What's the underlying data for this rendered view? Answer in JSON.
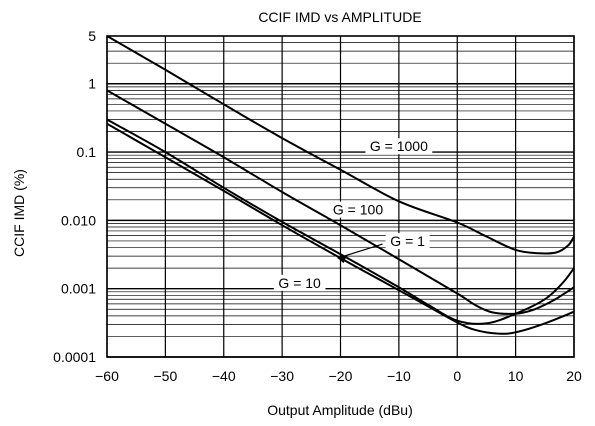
{
  "chart_data": {
    "type": "line",
    "title": "CCIF IMD vs AMPLITUDE",
    "xlabel": "Output Amplitude (dBu)",
    "ylabel": "CCIF IMD (%)",
    "xlim": [
      -60,
      20
    ],
    "ylim": [
      0.0001,
      5
    ],
    "yscale": "log",
    "grid": true,
    "x_ticks": [
      -60,
      -50,
      -40,
      -30,
      -20,
      -10,
      0,
      10,
      20
    ],
    "x_tick_labels": [
      "−60",
      "−50",
      "−40",
      "−30",
      "−20",
      "−10",
      "0",
      "10",
      "20"
    ],
    "y_ticks": [
      5,
      1,
      0.1,
      0.01,
      0.001,
      0.0001
    ],
    "y_tick_labels": [
      "5",
      "1",
      "0.1",
      "0.010",
      "0.001",
      "0.0001"
    ],
    "series": [
      {
        "name": "G = 1000",
        "x": [
          -60,
          -50,
          -40,
          -30,
          -20,
          -10,
          0,
          5,
          10,
          14,
          17,
          19,
          20
        ],
        "y": [
          5,
          1.6,
          0.5,
          0.16,
          0.055,
          0.019,
          0.0093,
          0.0058,
          0.0037,
          0.0033,
          0.0034,
          0.0043,
          0.0058
        ]
      },
      {
        "name": "G = 100",
        "x": [
          -60,
          -50,
          -40,
          -30,
          -20,
          -10,
          0,
          3,
          6,
          10,
          13,
          16,
          18,
          20
        ],
        "y": [
          0.8,
          0.26,
          0.084,
          0.026,
          0.0085,
          0.0027,
          0.00085,
          0.00058,
          0.00045,
          0.00043,
          0.00049,
          0.00064,
          0.00081,
          0.00105
        ]
      },
      {
        "name": "G = 1",
        "x": [
          -60,
          -50,
          -40,
          -30,
          -20,
          -10,
          -5,
          0,
          5,
          10,
          15,
          18,
          20
        ],
        "y": [
          0.3,
          0.1,
          0.03,
          0.0095,
          0.0032,
          0.00105,
          0.00058,
          0.00034,
          0.00031,
          0.00043,
          0.0007,
          0.0012,
          0.002
        ]
      },
      {
        "name": "G = 10",
        "x": [
          -60,
          -50,
          -40,
          -30,
          -20,
          -10,
          -5,
          0,
          3,
          7,
          10,
          15,
          20
        ],
        "y": [
          0.26,
          0.084,
          0.027,
          0.0085,
          0.0028,
          0.00095,
          0.00055,
          0.00032,
          0.00025,
          0.00022,
          0.00023,
          0.00031,
          0.00046
        ]
      }
    ],
    "annotations": [
      "G = 1000",
      "G = 100",
      "G = 1",
      "G = 10"
    ]
  }
}
